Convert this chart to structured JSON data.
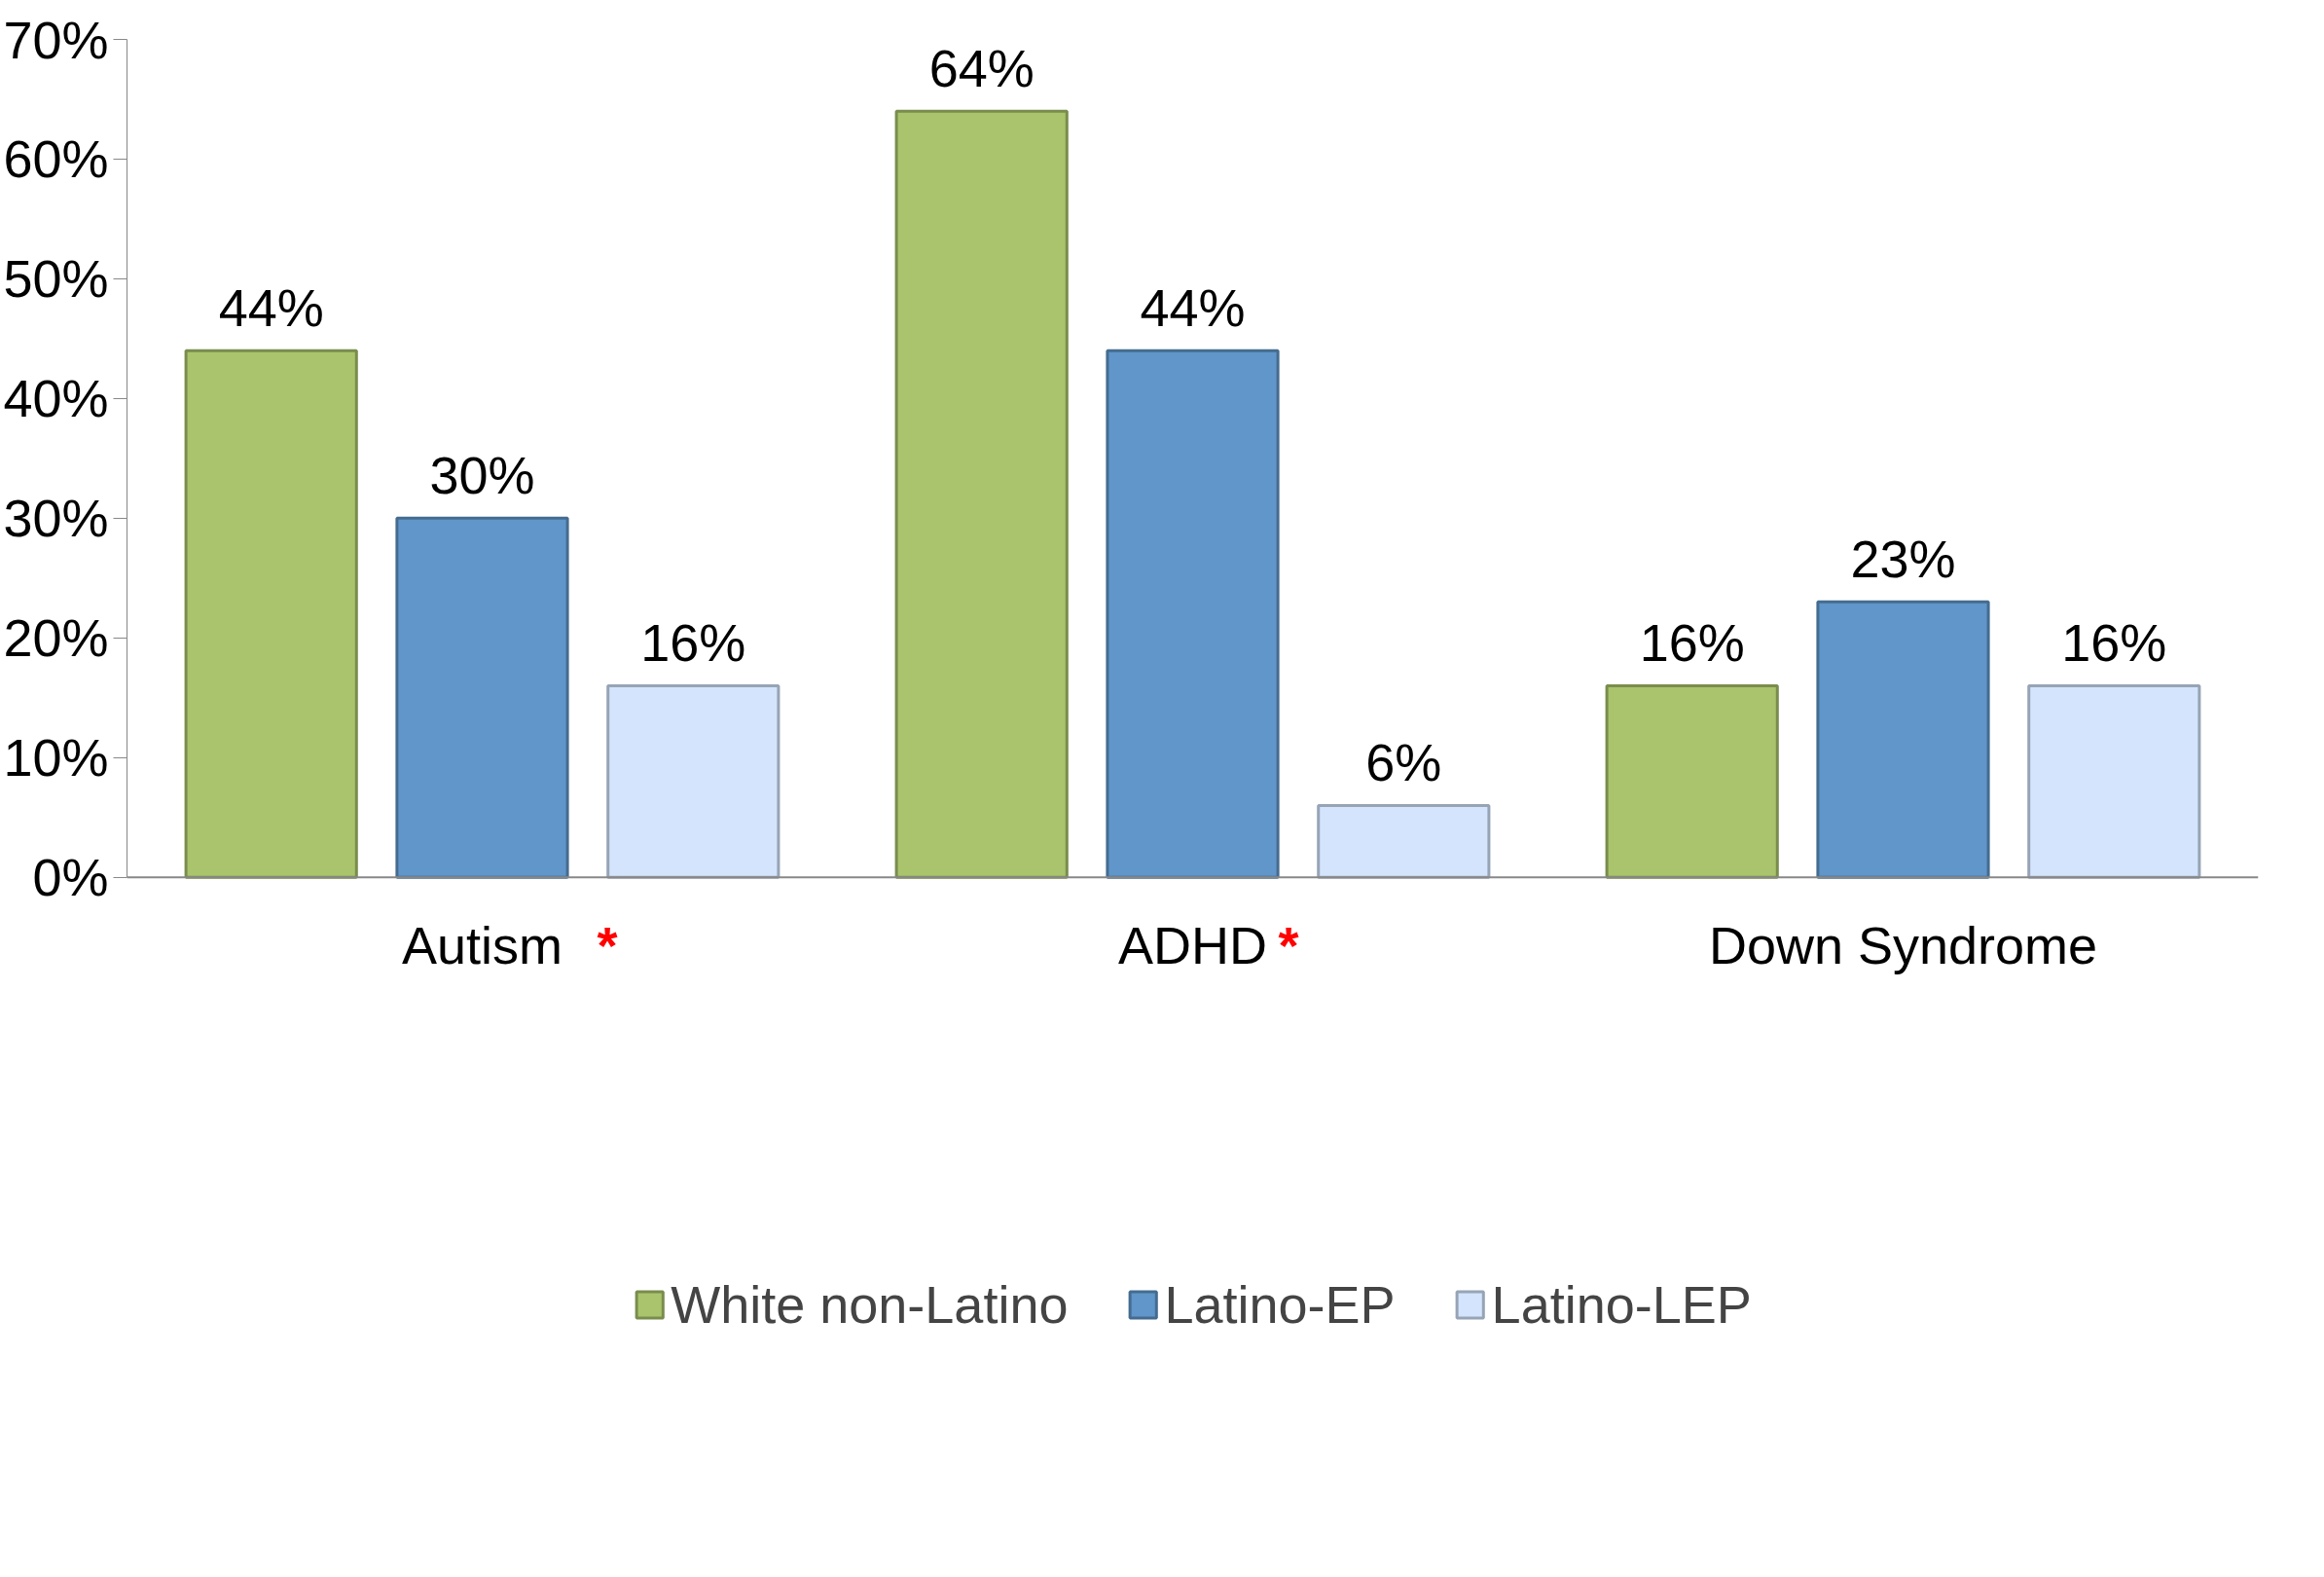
{
  "chart_data": {
    "type": "bar",
    "categories": [
      "Autism",
      "ADHD",
      "Down Syndrome"
    ],
    "series": [
      {
        "name": "White non-Latino",
        "color": "#a9c46c",
        "values": [
          44,
          64,
          16
        ]
      },
      {
        "name": "Latino-EP",
        "color": "#6096c9",
        "values": [
          30,
          44,
          23
        ]
      },
      {
        "name": "Latino-LEP",
        "color": "#d3e4fc",
        "values": [
          16,
          6,
          16
        ]
      }
    ],
    "ylim": [
      0,
      70
    ],
    "yticks": [
      {
        "value": 0,
        "label": "0%"
      },
      {
        "value": 10,
        "label": "10%"
      },
      {
        "value": 20,
        "label": "20%"
      },
      {
        "value": 30,
        "label": "30%"
      },
      {
        "value": 40,
        "label": "40%"
      },
      {
        "value": 50,
        "label": "50%"
      },
      {
        "value": 60,
        "label": "60%"
      },
      {
        "value": 70,
        "label": "70%"
      }
    ],
    "value_labels": [
      [
        "44%",
        "64%",
        "16%"
      ],
      [
        "30%",
        "44%",
        "23%"
      ],
      [
        "16%",
        "6%",
        "16%"
      ]
    ],
    "annotations": [
      "*",
      "*"
    ],
    "legend": "bottom",
    "grid": false
  }
}
